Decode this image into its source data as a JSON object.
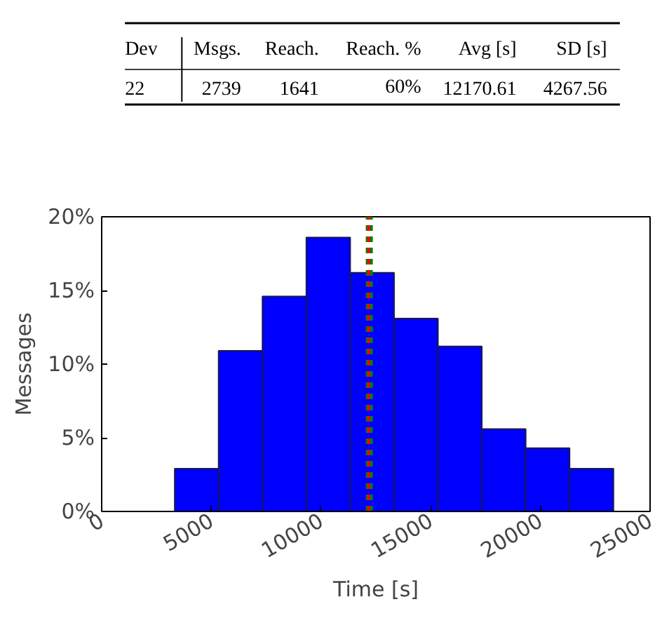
{
  "chart_data": {
    "type": "histogram",
    "xlabel": "Time [s]",
    "ylabel": "Messages",
    "bins": [
      3330,
      5330,
      7330,
      9330,
      11330,
      13330,
      15330,
      17330,
      19330,
      21330,
      23330
    ],
    "values": [
      2.9,
      10.9,
      14.6,
      18.6,
      16.2,
      13.1,
      11.2,
      5.6,
      4.3,
      2.9
    ],
    "color": "#0000ff",
    "xlim": [
      0,
      25000
    ],
    "xticks": [
      0,
      5000,
      10000,
      15000,
      20000,
      25000
    ],
    "ylim": [
      0,
      20
    ],
    "yticks": [
      {
        "value": 0,
        "label": "0%"
      },
      {
        "value": 5,
        "label": "5%"
      },
      {
        "value": 10,
        "label": "10%"
      },
      {
        "value": 15,
        "label": "15%"
      },
      {
        "value": 20,
        "label": "20%"
      }
    ],
    "ref_lines": [
      {
        "axis": "x",
        "value": 12200,
        "color": "#008000",
        "line_style": "dashed"
      },
      {
        "axis": "x",
        "value": 12170,
        "color": "#ff0000",
        "line_style": "dashed"
      }
    ],
    "grid": false,
    "annotations": [
      "Dev",
      "Msgs.",
      "Reach.",
      "Reach. %",
      "Avg [s]",
      "SD [s]",
      "22",
      "2739",
      "1641",
      "60%",
      "12170.61",
      "4267.56"
    ]
  }
}
